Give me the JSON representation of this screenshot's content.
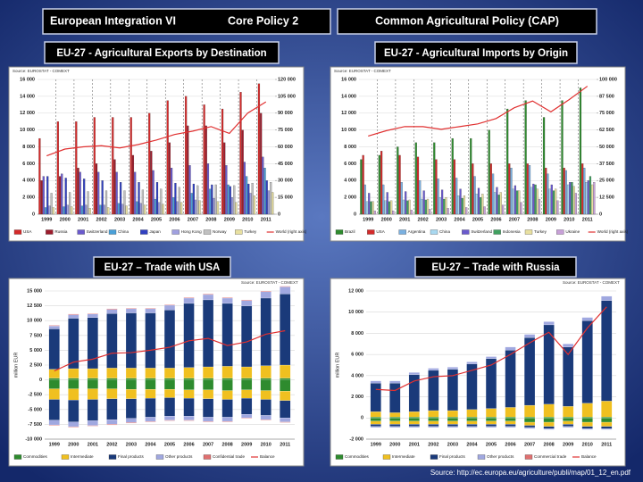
{
  "header": {
    "left": "European Integration VI",
    "middle": "Core Policy 2",
    "right": "Common Agricultural Policy (CAP)"
  },
  "footer": {
    "source": "Source: http://ec.europa.eu/agriculture/publi/map/01_12_en.pdf"
  },
  "chart_data": [
    {
      "type": "bar",
      "title": "EU-27 - Agricultural Exports by Destination",
      "source": "Source: EUROSTAT - COMEXT",
      "categories": [
        "1999",
        "2000",
        "2001",
        "2002",
        "2003",
        "2004",
        "2005",
        "2006",
        "2007",
        "2008",
        "2009",
        "2010",
        "2011"
      ],
      "ylim": [
        0,
        16000
      ],
      "yticks": [
        0,
        {
          "value": 2000,
          "label": "2 000"
        },
        {
          "value": 4000,
          "label": "4 000"
        },
        {
          "value": 6000,
          "label": "6 000"
        },
        {
          "value": 8000,
          "label": "8 000"
        },
        {
          "value": 10000,
          "label": "10 000"
        },
        {
          "value": 12000,
          "label": "12 000"
        },
        {
          "value": 14000,
          "label": "14 000"
        },
        {
          "value": 16000,
          "label": "16 000"
        }
      ],
      "y2lim": [
        0,
        120000
      ],
      "y2ticks": [
        0,
        {
          "value": 15000,
          "label": "15 000"
        },
        {
          "value": 30000,
          "label": "30 000"
        },
        {
          "value": 45000,
          "label": "45 000"
        },
        {
          "value": 60000,
          "label": "60 000"
        },
        {
          "value": 75000,
          "label": "75 000"
        },
        {
          "value": 90000,
          "label": "90 000"
        },
        {
          "value": 105000,
          "label": "105 000"
        },
        {
          "value": 120000,
          "label": "120 000"
        }
      ],
      "grid": true,
      "series": [
        {
          "name": "USA",
          "color": "#d42a2a",
          "values": [
            9000,
            11000,
            11000,
            11500,
            11500,
            11500,
            12000,
            13500,
            14000,
            13000,
            12500,
            14500,
            15500
          ]
        },
        {
          "name": "Russia",
          "color": "#9c1c2c",
          "values": [
            4000,
            4500,
            5500,
            6000,
            6500,
            7000,
            7500,
            8500,
            10500,
            10500,
            8500,
            10000,
            12000
          ]
        },
        {
          "name": "Switzerland",
          "color": "#6a5acd",
          "values": [
            4500,
            4800,
            5000,
            5000,
            5000,
            5000,
            5200,
            5500,
            5800,
            6000,
            5800,
            6200,
            6800
          ]
        },
        {
          "name": "China",
          "color": "#4aa0d8",
          "values": [
            800,
            900,
            1000,
            1100,
            1300,
            1500,
            1800,
            2000,
            2500,
            3000,
            3500,
            4500,
            5500
          ]
        },
        {
          "name": "Japan",
          "color": "#3040c0",
          "values": [
            4500,
            4300,
            4200,
            4000,
            3800,
            3800,
            3800,
            3700,
            3600,
            3500,
            3300,
            3600,
            4000
          ]
        },
        {
          "name": "Hong Kong",
          "color": "#a0a0e0",
          "values": [
            1000,
            1100,
            1100,
            1100,
            1200,
            1300,
            1400,
            1500,
            1700,
            1900,
            2000,
            2500,
            2800
          ]
        },
        {
          "name": "Norway",
          "color": "#c0c0c0",
          "values": [
            2500,
            2600,
            2700,
            2800,
            2800,
            2900,
            3000,
            3200,
            3400,
            3500,
            3400,
            3700,
            3800
          ]
        },
        {
          "name": "Turkey",
          "color": "#e8e0a0",
          "values": [
            800,
            900,
            700,
            800,
            1000,
            1100,
            1200,
            1400,
            1600,
            1500,
            1400,
            2200,
            2600
          ]
        },
        {
          "name": "World (right axis)",
          "color": "#e03030",
          "type": "line",
          "axis": "y2",
          "values": [
            52000,
            58000,
            60000,
            61000,
            59000,
            62000,
            66000,
            71000,
            74000,
            78000,
            72000,
            90000,
            100000
          ]
        }
      ]
    },
    {
      "type": "bar",
      "title": "EU-27 - Agricultural Imports by Origin",
      "source": "Source: EUROSTAT - COMEXT",
      "categories": [
        "1999",
        "2000",
        "2001",
        "2002",
        "2003",
        "2004",
        "2005",
        "2006",
        "2007",
        "2008",
        "2009",
        "2010",
        "2011"
      ],
      "ylim": [
        0,
        16000
      ],
      "yticks": [
        0,
        {
          "value": 2000,
          "label": "2 000"
        },
        {
          "value": 4000,
          "label": "4 000"
        },
        {
          "value": 6000,
          "label": "6 000"
        },
        {
          "value": 8000,
          "label": "8 000"
        },
        {
          "value": 10000,
          "label": "10 000"
        },
        {
          "value": 12000,
          "label": "12 000"
        },
        {
          "value": 14000,
          "label": "14 000"
        },
        {
          "value": 16000,
          "label": "16 000"
        }
      ],
      "y2lim": [
        0,
        100000
      ],
      "y2ticks": [
        0,
        {
          "value": 12500,
          "label": "12 500"
        },
        {
          "value": 25000,
          "label": "25 000"
        },
        {
          "value": 37500,
          "label": "37 500"
        },
        {
          "value": 50000,
          "label": "50 000"
        },
        {
          "value": 62500,
          "label": "62 500"
        },
        {
          "value": 75000,
          "label": "75 000"
        },
        {
          "value": 87500,
          "label": "87 500"
        },
        {
          "value": 100000,
          "label": "100 000"
        }
      ],
      "grid": true,
      "series": [
        {
          "name": "Brazil",
          "color": "#2e8b2e",
          "values": [
            6500,
            7000,
            8000,
            8500,
            8500,
            9000,
            9000,
            10000,
            12500,
            13500,
            11500,
            13500,
            15000
          ]
        },
        {
          "name": "USA",
          "color": "#d42a2a",
          "values": [
            7000,
            7500,
            7000,
            6800,
            6500,
            6500,
            6000,
            6000,
            6000,
            6000,
            5500,
            5500,
            6000
          ]
        },
        {
          "name": "Argentina",
          "color": "#7ab0e0",
          "values": [
            3500,
            3500,
            3800,
            4000,
            4200,
            4300,
            4500,
            4800,
            5500,
            5800,
            4800,
            5200,
            5500
          ]
        },
        {
          "name": "China",
          "color": "#a8d8f0",
          "values": [
            1500,
            1600,
            1700,
            1800,
            2000,
            2200,
            2400,
            2600,
            3000,
            3200,
            3000,
            3500,
            3800
          ]
        },
        {
          "name": "Switzerland",
          "color": "#6a5acd",
          "values": [
            2500,
            2600,
            2700,
            2800,
            2900,
            3000,
            3100,
            3200,
            3400,
            3600,
            3500,
            3800,
            4000
          ]
        },
        {
          "name": "Indonesia",
          "color": "#40a060",
          "values": [
            1500,
            1500,
            1600,
            1700,
            1800,
            1900,
            2000,
            2300,
            2800,
            3500,
            2800,
            3800,
            4500
          ]
        },
        {
          "name": "Turkey",
          "color": "#e8e0a0",
          "values": [
            1500,
            1600,
            1700,
            1800,
            2000,
            2200,
            2400,
            2600,
            2800,
            3000,
            3000,
            3300,
            3500
          ]
        },
        {
          "name": "Ukraine",
          "color": "#c8a0d8",
          "values": [
            400,
            400,
            500,
            600,
            700,
            800,
            900,
            1100,
            1400,
            1800,
            1600,
            2500,
            3800
          ]
        },
        {
          "name": "World (right axis)",
          "color": "#e03030",
          "type": "line",
          "axis": "y2",
          "values": [
            58000,
            62000,
            65000,
            65000,
            63000,
            65000,
            67000,
            71000,
            79000,
            84000,
            76000,
            85000,
            95000
          ]
        }
      ]
    },
    {
      "type": "stackedbar",
      "title": "EU-27 – Trade with USA",
      "source": "Source: EUROSTAT - COMEXT",
      "y_label": "million EUR",
      "categories": [
        "1999",
        "2000",
        "2001",
        "2002",
        "2003",
        "2004",
        "2005",
        "2006",
        "2007",
        "2008",
        "2009",
        "2010",
        "2011"
      ],
      "ylim": [
        -10000,
        15000
      ],
      "yticks": [
        {
          "value": -10000,
          "label": "-10 000"
        },
        {
          "value": -7500,
          "label": "-7 500"
        },
        {
          "value": -5000,
          "label": "-5 000"
        },
        {
          "value": -2500,
          "label": "-2 500"
        },
        0,
        {
          "value": 2500,
          "label": "2 500"
        },
        {
          "value": 5000,
          "label": "5 000"
        },
        {
          "value": 7500,
          "label": "7 500"
        },
        {
          "value": 10000,
          "label": "10 000"
        },
        {
          "value": 12500,
          "label": "12 500"
        },
        {
          "value": 15000,
          "label": "15 000"
        }
      ],
      "grid": true,
      "series": [
        {
          "name": "Commodities",
          "color": "#2e8b2e",
          "values": [
            300,
            300,
            300,
            300,
            300,
            300,
            300,
            300,
            300,
            300,
            300,
            300,
            300
          ],
          "imports": [
            -1500,
            -1500,
            -1500,
            -1500,
            -1600,
            -1600,
            -1600,
            -1700,
            -1700,
            -1800,
            -1700,
            -1800,
            -1900
          ]
        },
        {
          "name": "Intermediate",
          "color": "#f0c020",
          "values": [
            1500,
            1600,
            1600,
            1700,
            1700,
            1700,
            1700,
            1800,
            1900,
            2000,
            1900,
            2100,
            2200
          ],
          "imports": [
            -1800,
            -1900,
            -1800,
            -1700,
            -1600,
            -1500,
            -1400,
            -1400,
            -1500,
            -1500,
            -1400,
            -1500,
            -1600
          ]
        },
        {
          "name": "Final products",
          "color": "#1a3a7a",
          "values": [
            6800,
            8500,
            8600,
            9200,
            9300,
            9300,
            9800,
            10800,
            11300,
            10600,
            10300,
            11400,
            12000
          ],
          "imports": [
            -3500,
            -3700,
            -3600,
            -3500,
            -3300,
            -3200,
            -3100,
            -3000,
            -3100,
            -3000,
            -2700,
            -2700,
            -2900
          ]
        },
        {
          "name": "Other products",
          "color": "#a0a8e0",
          "values": [
            500,
            600,
            600,
            700,
            700,
            700,
            800,
            900,
            900,
            900,
            900,
            1100,
            1200
          ],
          "imports": [
            -800,
            -800,
            -800,
            -800,
            -700,
            -700,
            -700,
            -700,
            -700,
            -700,
            -600,
            -700,
            -700
          ]
        },
        {
          "name": "Confidential trade",
          "color": "#e07070",
          "values": [
            100,
            100,
            100,
            100,
            100,
            100,
            100,
            100,
            100,
            100,
            100,
            100,
            100
          ],
          "imports": [
            -100,
            -100,
            -100,
            -100,
            -100,
            -100,
            -100,
            -100,
            -100,
            -100,
            -100,
            -100,
            -100
          ]
        },
        {
          "name": "Balance",
          "color": "#e03030",
          "type": "line",
          "values": [
            1500,
            3000,
            3500,
            4500,
            4600,
            5000,
            5500,
            6600,
            7000,
            5800,
            6400,
            7700,
            8300
          ]
        }
      ]
    },
    {
      "type": "stackedbar",
      "title": "EU-27 – Trade with Russia",
      "source": "Source: EUROSTAT - COMEXT",
      "y_label": "million EUR",
      "categories": [
        "1999",
        "2000",
        "2001",
        "2002",
        "2003",
        "2004",
        "2005",
        "2006",
        "2007",
        "2008",
        "2009",
        "2010",
        "2011"
      ],
      "ylim": [
        -2000,
        12000
      ],
      "yticks": [
        {
          "value": -2000,
          "label": "-2 000"
        },
        0,
        {
          "value": 2000,
          "label": "2 000"
        },
        {
          "value": 4000,
          "label": "4 000"
        },
        {
          "value": 6000,
          "label": "6 000"
        },
        {
          "value": 8000,
          "label": "8 000"
        },
        {
          "value": 10000,
          "label": "10 000"
        },
        {
          "value": 12000,
          "label": "12 000"
        }
      ],
      "grid": true,
      "series": [
        {
          "name": "Commodities",
          "color": "#2e8b2e",
          "values": [
            100,
            100,
            100,
            100,
            100,
            100,
            100,
            100,
            100,
            100,
            100,
            100,
            100
          ],
          "imports": [
            -300,
            -300,
            -300,
            -300,
            -300,
            -300,
            -300,
            -300,
            -400,
            -400,
            -300,
            -400,
            -400
          ]
        },
        {
          "name": "Intermediate",
          "color": "#f0c020",
          "values": [
            500,
            400,
            500,
            600,
            600,
            700,
            800,
            900,
            1100,
            1200,
            1000,
            1300,
            1500
          ],
          "imports": [
            -300,
            -300,
            -300,
            -300,
            -300,
            -300,
            -300,
            -300,
            -300,
            -400,
            -300,
            -400,
            -400
          ]
        },
        {
          "name": "Final products",
          "color": "#1a3a7a",
          "values": [
            2700,
            2800,
            3500,
            3800,
            3900,
            4300,
            4700,
            5400,
            6400,
            7500,
            5600,
            7800,
            9500
          ],
          "imports": [
            -200,
            -200,
            -200,
            -200,
            -200,
            -200,
            -200,
            -200,
            -200,
            -200,
            -200,
            -200,
            -200
          ]
        },
        {
          "name": "Other products",
          "color": "#a0a8e0",
          "values": [
            200,
            200,
            200,
            200,
            200,
            200,
            200,
            300,
            300,
            300,
            300,
            300,
            400
          ],
          "imports": [
            -100,
            -100,
            -100,
            -100,
            -100,
            -100,
            -100,
            -100,
            -100,
            -100,
            -100,
            -100,
            -100
          ]
        },
        {
          "name": "Commercial trade",
          "color": "#e07070",
          "values": [
            0,
            0,
            0,
            0,
            0,
            0,
            0,
            0,
            0,
            0,
            0,
            0,
            0
          ],
          "imports": [
            0,
            0,
            0,
            0,
            0,
            0,
            0,
            0,
            0,
            0,
            0,
            0,
            0
          ]
        },
        {
          "name": "Balance",
          "color": "#e03030",
          "type": "line",
          "values": [
            2700,
            2600,
            3500,
            3900,
            4000,
            4500,
            5000,
            6000,
            7100,
            8100,
            6000,
            8500,
            10500
          ]
        }
      ]
    }
  ]
}
